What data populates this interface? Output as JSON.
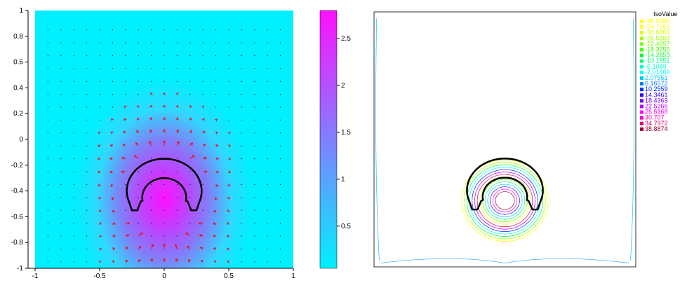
{
  "chart_data": [
    {
      "type": "heatmap",
      "description_role": "left-field-plot",
      "xlim": [
        -1,
        1
      ],
      "ylim": [
        -1,
        1
      ],
      "x_ticks": [
        "-1",
        "-0.5",
        "0",
        "0.5",
        "1"
      ],
      "y_ticks": [
        "1",
        "0.8",
        "0.6",
        "0.4",
        "0.2",
        "0",
        "-0.2",
        "-0.4",
        "-0.6",
        "-0.8",
        "-1"
      ],
      "x_tick_values": [
        -1,
        -0.5,
        0,
        0.5,
        1
      ],
      "y_tick_values": [
        1,
        0.8,
        0.6,
        0.4,
        0.2,
        0,
        -0.2,
        -0.4,
        -0.6,
        -0.8,
        -1
      ],
      "colorbar": {
        "range": [
          0.05,
          2.8
        ],
        "ticks": [
          "2.5",
          "2",
          "1.5",
          "1",
          "0.5"
        ],
        "tick_values": [
          2.5,
          2,
          1.5,
          1,
          0.5
        ],
        "color_low": "#00f0ff",
        "color_high": "#ff10ff"
      },
      "peak": {
        "x": 0,
        "y": -0.5,
        "value": 2.8
      },
      "arrow_color": "#ff0000",
      "interface_color": "#000000"
    },
    {
      "type": "contour",
      "description_role": "right-isovalue-plot",
      "legend_title": "IsoValue",
      "isovalues": [
        "-38.0266",
        "-34.7366",
        "-30.6461",
        "-26.5556",
        "-22.4657",
        "-18.3755",
        "-14.2853",
        "-10.1951",
        "-6.1049",
        "-2.01469",
        "2.07551",
        "6.16572",
        "10.2559",
        "14.3461",
        "18.4363",
        "22.5266",
        "26.6168",
        "30.707",
        "34.7972",
        "38.8874"
      ],
      "legend_colors": [
        "#ffff00",
        "#ffff30",
        "#d8ff00",
        "#a8ff00",
        "#78ff00",
        "#40ff00",
        "#00ff30",
        "#00ff80",
        "#00ffc8",
        "#00ffff",
        "#00c8ff",
        "#0080ff",
        "#0030ff",
        "#3000ff",
        "#7000ff",
        "#b000ff",
        "#ff00ff",
        "#ff00c0",
        "#e00070",
        "#a00030"
      ]
    }
  ]
}
